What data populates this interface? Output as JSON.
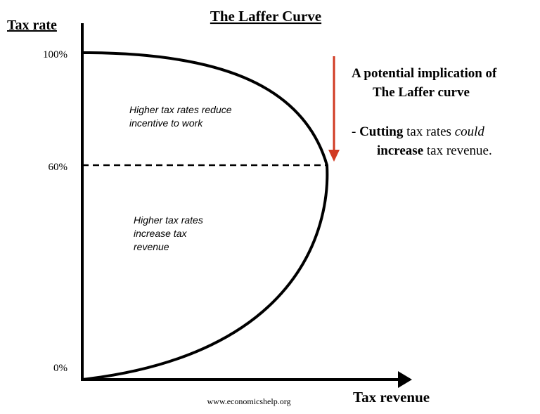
{
  "title": "The Laffer Curve",
  "y_axis_label": "Tax rate",
  "x_axis_label": "Tax revenue",
  "y_labels": [
    "100%",
    "60%",
    "0%"
  ],
  "upper_annotation": [
    "Higher tax rates reduce",
    "incentive to work"
  ],
  "lower_annotation": [
    "Higher tax rates",
    "increase tax",
    "revenue"
  ],
  "note": {
    "heading": [
      "A potential implication of",
      "The Laffer curve"
    ],
    "line1": [
      "- ",
      "Cutting",
      " tax rates ",
      "could"
    ],
    "line2": [
      "increase",
      " tax revenue."
    ]
  },
  "source": "www.economicshelp.org"
}
